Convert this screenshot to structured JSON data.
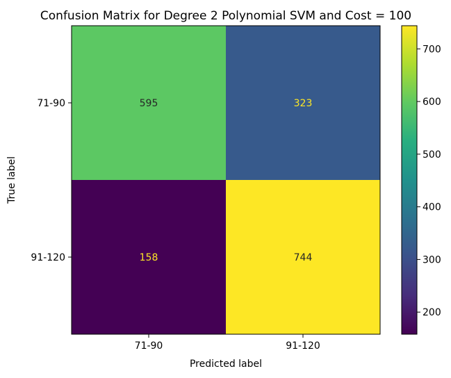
{
  "chart_data": {
    "type": "heatmap",
    "title": "Confusion Matrix for Degree 2 Polynomial SVM and Cost = 100",
    "xlabel": "Predicted label",
    "ylabel": "True label",
    "x_categories": [
      "71-90",
      "91-120"
    ],
    "y_categories": [
      "71-90",
      "91-120"
    ],
    "values": [
      [
        595,
        323
      ],
      [
        158,
        744
      ]
    ],
    "colormap": "viridis",
    "colorbar": {
      "range": [
        158,
        744
      ],
      "ticks": [
        "200",
        "300",
        "400",
        "500",
        "600",
        "700"
      ]
    },
    "grid": false,
    "light_text_color": "#fde725",
    "dark_text_color": "#262626"
  }
}
